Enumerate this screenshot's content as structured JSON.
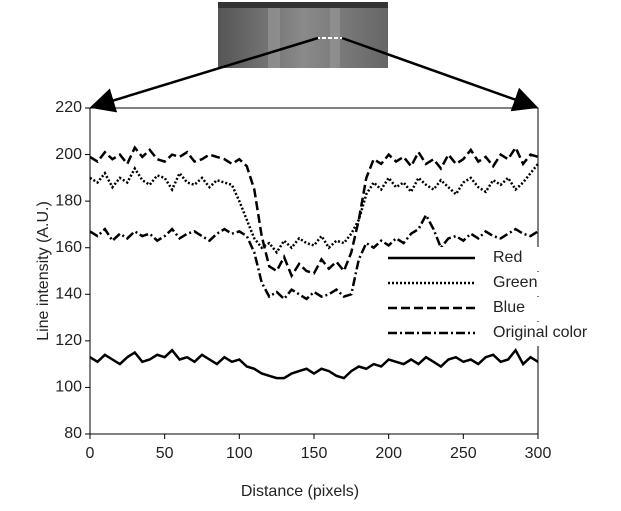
{
  "chart_data": {
    "type": "line",
    "x_label": "Distance (pixels)",
    "y_label": "Line intensity (A.U.)",
    "x": [
      0,
      5,
      10,
      15,
      20,
      25,
      30,
      35,
      40,
      45,
      50,
      55,
      60,
      65,
      70,
      75,
      80,
      85,
      90,
      95,
      100,
      105,
      110,
      115,
      120,
      125,
      130,
      135,
      140,
      145,
      150,
      155,
      160,
      165,
      170,
      175,
      180,
      185,
      190,
      195,
      200,
      205,
      210,
      215,
      220,
      225,
      230,
      235,
      240,
      245,
      250,
      255,
      260,
      265,
      270,
      275,
      280,
      285,
      290,
      295,
      300
    ],
    "xlim": [
      0,
      300
    ],
    "xticks": [
      0,
      50,
      100,
      150,
      200,
      250,
      300
    ],
    "ylim": [
      80,
      220
    ],
    "yticks": [
      80,
      100,
      120,
      140,
      160,
      180,
      200,
      220
    ],
    "legend": "center right",
    "series": [
      {
        "name": "Red",
        "color": "#000000",
        "dash": "solid",
        "values": [
          113,
          111,
          114,
          112,
          110,
          113,
          115,
          111,
          112,
          114,
          113,
          116,
          112,
          113,
          111,
          114,
          112,
          110,
          113,
          111,
          112,
          109,
          108,
          106,
          105,
          104,
          104,
          106,
          107,
          108,
          106,
          108,
          107,
          105,
          104,
          107,
          109,
          108,
          110,
          109,
          112,
          111,
          110,
          112,
          110,
          113,
          111,
          109,
          112,
          113,
          111,
          112,
          110,
          113,
          114,
          111,
          112,
          116,
          110,
          113,
          111
        ]
      },
      {
        "name": "Green",
        "color": "#000000",
        "dash": "dotted",
        "values": [
          190,
          188,
          192,
          186,
          190,
          188,
          194,
          189,
          187,
          191,
          190,
          185,
          192,
          188,
          187,
          190,
          186,
          189,
          188,
          187,
          180,
          172,
          164,
          160,
          162,
          158,
          163,
          160,
          164,
          162,
          161,
          165,
          160,
          163,
          162,
          166,
          172,
          183,
          188,
          185,
          190,
          186,
          188,
          184,
          190,
          187,
          185,
          189,
          186,
          183,
          188,
          190,
          186,
          184,
          189,
          187,
          190,
          185,
          188,
          192,
          196
        ]
      },
      {
        "name": "Blue",
        "color": "#000000",
        "dash": "dashed",
        "values": [
          199,
          197,
          201,
          198,
          200,
          196,
          203,
          199,
          202,
          198,
          197,
          200,
          199,
          201,
          197,
          198,
          200,
          199,
          198,
          196,
          198,
          195,
          185,
          165,
          152,
          150,
          156,
          148,
          153,
          150,
          149,
          155,
          151,
          154,
          150,
          158,
          172,
          190,
          198,
          196,
          200,
          197,
          199,
          195,
          201,
          196,
          198,
          194,
          200,
          196,
          198,
          202,
          197,
          199,
          195,
          200,
          198,
          203,
          196,
          200,
          199
        ]
      },
      {
        "name": "Original color",
        "color": "#000000",
        "dash": "dashdot",
        "values": [
          167,
          165,
          168,
          163,
          166,
          164,
          167,
          165,
          166,
          163,
          165,
          168,
          164,
          166,
          167,
          165,
          163,
          166,
          168,
          166,
          167,
          165,
          158,
          145,
          139,
          141,
          138,
          142,
          140,
          138,
          141,
          139,
          140,
          142,
          139,
          140,
          155,
          162,
          160,
          163,
          161,
          164,
          162,
          166,
          168,
          174,
          168,
          160,
          164,
          165,
          163,
          166,
          164,
          167,
          165,
          164,
          166,
          168,
          166,
          165,
          167
        ]
      }
    ]
  }
}
